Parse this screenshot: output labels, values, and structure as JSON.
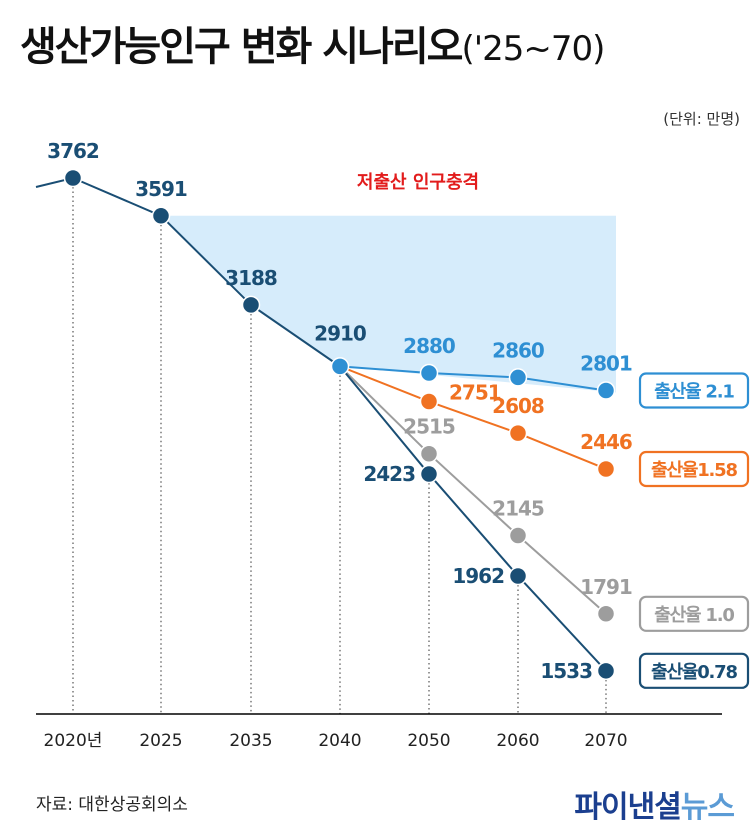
{
  "header": {
    "title": "생산가능인구 변화 시나리오",
    "title_period": "('25~70)",
    "unit": "(단위: 만명)"
  },
  "footer": {
    "source": "자료: 대한상공회의소",
    "brand_part1": "파이낸셜",
    "brand_part2": "뉴스"
  },
  "chart_data": {
    "type": "line",
    "title": "생산가능인구 변화 시나리오('25~70)",
    "unit": "만명",
    "categories": [
      "2020년",
      "2025",
      "2035",
      "2040",
      "2050",
      "2060",
      "2070"
    ],
    "shaded_region_label": "저출산 인구충격",
    "baseline": {
      "values": [
        3762,
        3591,
        3188,
        2910
      ],
      "labels": [
        "3762",
        "3591",
        "3188",
        "2910"
      ],
      "color": "#1a4e74"
    },
    "series": [
      {
        "name": "출산율 2.1",
        "color": "#2e8fd3",
        "values": [
          null,
          null,
          null,
          2910,
          2880,
          2860,
          2801
        ],
        "labels": [
          "",
          "",
          "",
          "",
          "2880",
          "2860",
          "2801"
        ]
      },
      {
        "name": "출산율1.58",
        "color": "#f07222",
        "values": [
          null,
          null,
          null,
          2910,
          2751,
          2608,
          2446
        ],
        "labels": [
          "",
          "",
          "",
          "",
          "2751",
          "2608",
          "2446"
        ]
      },
      {
        "name": "출산율 1.0",
        "color": "#9d9d9d",
        "values": [
          null,
          null,
          null,
          2910,
          2515,
          2145,
          1791
        ],
        "labels": [
          "",
          "",
          "",
          "",
          "2515",
          "2145",
          "1791"
        ]
      },
      {
        "name": "출산율0.78",
        "color": "#1a4e74",
        "values": [
          null,
          null,
          null,
          2910,
          2423,
          1962,
          1533
        ],
        "labels": [
          "",
          "",
          "",
          "",
          "2423",
          "1962",
          "1533"
        ]
      }
    ],
    "grid": false,
    "legend_placement": "right"
  }
}
